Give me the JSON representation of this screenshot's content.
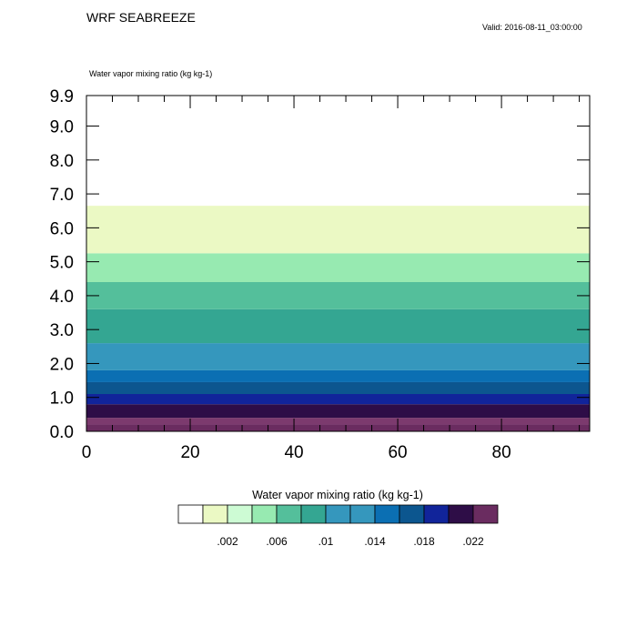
{
  "header": {
    "title": "WRF SEABREEZE",
    "valid": "Valid: 2016-08-11_03:00:00",
    "field_label": "Water vapor mixing ratio   (kg kg-1)"
  },
  "chart_data": {
    "type": "heatmap",
    "title": "WRF SEABREEZE",
    "subtitle": "Water vapor mixing ratio   (kg kg-1)",
    "xlim": [
      0,
      97
    ],
    "ylim": [
      0,
      9.9
    ],
    "x_ticks": [
      "0",
      "20",
      "40",
      "60",
      "80"
    ],
    "x_tick_values": [
      0,
      20,
      40,
      60,
      80
    ],
    "y_ticks": [
      "0.0",
      "1.0",
      "2.0",
      "3.0",
      "4.0",
      "5.0",
      "6.0",
      "7.0",
      "8.0",
      "9.0",
      "9.9"
    ],
    "y_tick_values": [
      0,
      1,
      2,
      3,
      4,
      5,
      6,
      7,
      8,
      9,
      9.9
    ],
    "bands": [
      {
        "y0": 0.0,
        "y1": 0.2,
        "color": "#6a2c60"
      },
      {
        "y0": 0.2,
        "y1": 0.4,
        "color": "#7c3a6e"
      },
      {
        "y0": 0.4,
        "y1": 0.8,
        "color": "#2e0d47"
      },
      {
        "y0": 0.8,
        "y1": 1.1,
        "color": "#11249a"
      },
      {
        "y0": 1.1,
        "y1": 1.45,
        "color": "#0c568f"
      },
      {
        "y0": 1.45,
        "y1": 1.8,
        "color": "#0b6fb3"
      },
      {
        "y0": 1.8,
        "y1": 2.6,
        "color": "#3597bd"
      },
      {
        "y0": 2.6,
        "y1": 3.6,
        "color": "#34a692"
      },
      {
        "y0": 3.6,
        "y1": 4.4,
        "color": "#54bf9b"
      },
      {
        "y0": 4.4,
        "y1": 5.25,
        "color": "#97eab1"
      },
      {
        "y0": 5.25,
        "y1": 6.65,
        "color": "#ebf9c4"
      }
    ],
    "colorbar": {
      "title": "Water vapor mixing ratio  (kg kg-1)",
      "colors": [
        "#ffffff",
        "#ebf9c4",
        "#cdfbd4",
        "#97eab1",
        "#54bf9b",
        "#34a692",
        "#3597bd",
        "#3597bd",
        "#0b6fb3",
        "#0c568f",
        "#11249a",
        "#2e0d47",
        "#6a2c60"
      ],
      "labels": [
        ".002",
        ".006",
        ".01",
        ".014",
        ".018",
        ".022"
      ]
    }
  }
}
